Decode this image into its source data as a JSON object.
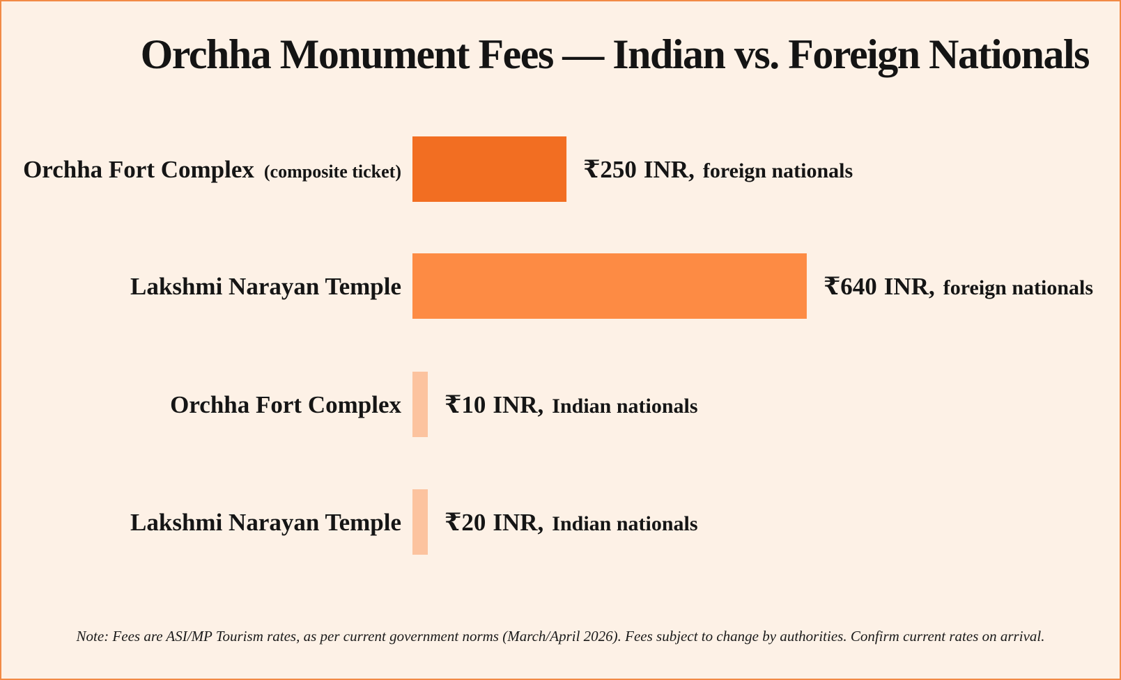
{
  "chart_data": {
    "type": "bar",
    "orientation": "horizontal",
    "title": "Orchha Monument Fees — Indian vs. Foreign Nationals",
    "currency_symbol": "₹",
    "unit": "INR",
    "bars": [
      {
        "category": "Orchha Fort Complex",
        "category_note": "(composite ticket)",
        "value": 250,
        "group": "foreign nationals",
        "color": "#f26e22"
      },
      {
        "category": "Lakshmi Narayan Temple",
        "category_note": "",
        "value": 640,
        "group": "foreign nationals",
        "color": "#fd8b44"
      },
      {
        "category": "Orchha Fort Complex",
        "category_note": "",
        "value": 10,
        "group": "Indian nationals",
        "color": "#fcc39f"
      },
      {
        "category": "Lakshmi Narayan Temple",
        "category_note": "",
        "value": 20,
        "group": "Indian nationals",
        "color": "#fcc39f"
      }
    ],
    "grid": false,
    "legend": "none"
  },
  "note": "Note: Fees are ASI/MP Tourism rates, as per current government norms (March/April 2026). Fees subject to change by authorities. Confirm current rates on arrival."
}
